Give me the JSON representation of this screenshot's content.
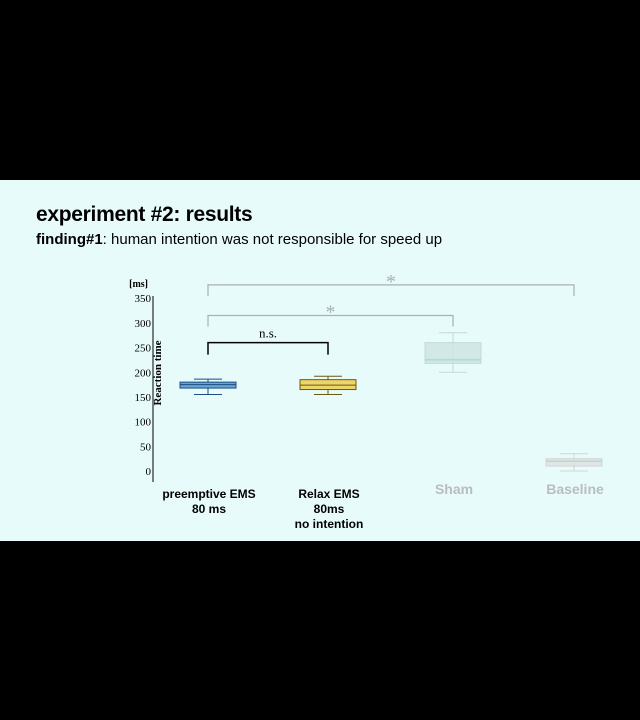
{
  "slide": {
    "title": "experiment #2: results",
    "finding_label": "finding#1",
    "finding_text": ": human intention was not responsible for speed up"
  },
  "chart_data": {
    "type": "box",
    "ylabel": "Reaction time",
    "yunit": "[ms]",
    "yticks": [
      0,
      50,
      100,
      150,
      200,
      250,
      300,
      350
    ],
    "ylim": [
      -20,
      350
    ],
    "categories": [
      {
        "label": [
          "preemptive EMS",
          "80 ms"
        ],
        "min": 155,
        "q1": 168,
        "median": 175,
        "q3": 180,
        "max": 186,
        "fill": "#6aa4d8",
        "stroke": "#1a4d80",
        "faded": false
      },
      {
        "label": [
          "Relax EMS",
          "80ms",
          "no intention"
        ],
        "min": 155,
        "q1": 165,
        "median": 174,
        "q3": 185,
        "max": 192,
        "fill": "#ecd56a",
        "stroke": "#6a5a10",
        "faded": false
      },
      {
        "label": [
          "Sham"
        ],
        "min": 200,
        "q1": 218,
        "median": 225,
        "q3": 260,
        "max": 280,
        "fill": "#cfe5e3",
        "stroke": "#b9d6d3",
        "faded": true
      },
      {
        "label": [
          "Baseline"
        ],
        "min": 0,
        "q1": 10,
        "median": 20,
        "q3": 25,
        "max": 35,
        "fill": "#e2e2e2",
        "stroke": "#cfcfcf",
        "faded": true
      }
    ],
    "annotations": [
      {
        "from": 0,
        "to": 1,
        "label": "n.s.",
        "level": 260
      },
      {
        "from": 0,
        "to": 2,
        "label": "*",
        "level": 315
      },
      {
        "from": 0,
        "to": 3,
        "label": "*",
        "level": 377
      }
    ]
  }
}
